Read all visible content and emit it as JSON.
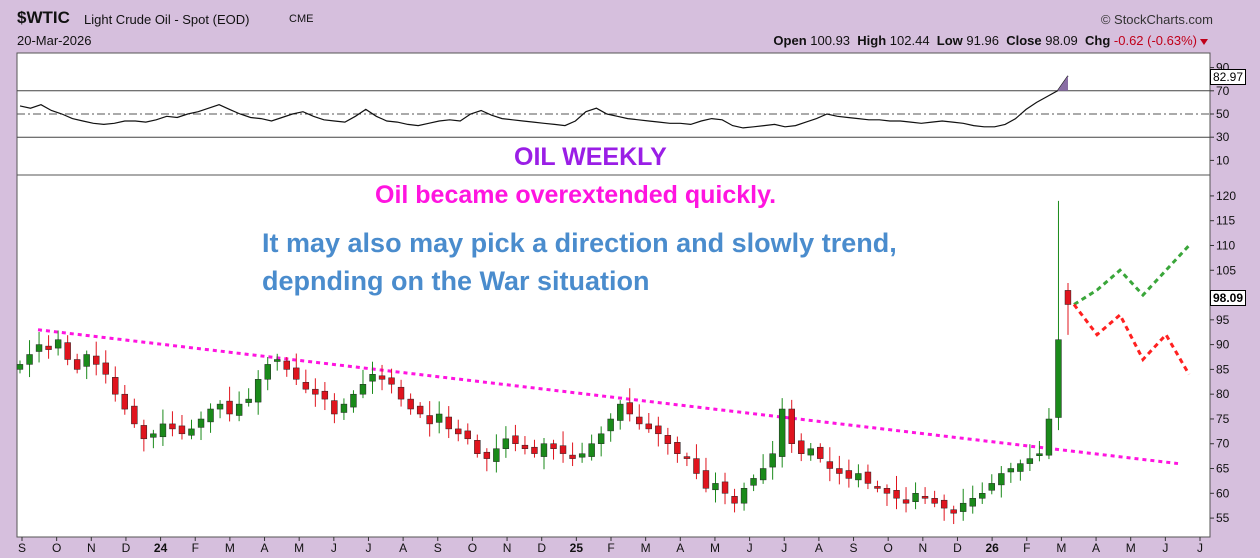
{
  "header": {
    "ticker": "$WTIC",
    "name": "Light Crude Oil - Spot (EOD)",
    "exchange": "CME",
    "date": "20-Mar-2026",
    "copyright": "© StockCharts.com",
    "open_label": "Open",
    "open": "100.93",
    "high_label": "High",
    "high": "102.44",
    "low_label": "Low",
    "low": "91.96",
    "close_label": "Close",
    "close": "98.09",
    "chg_label": "Chg",
    "chg": "-0.62 (-0.63%)"
  },
  "annotations": {
    "title": "OIL WEEKLY",
    "line1": "Oil became overextended quickly.",
    "line2": "It may also may pick a direction and slowly trend,",
    "line3": "depnding on the War situation"
  },
  "labels": {
    "last_price": "98.09",
    "rsi_last": "82.97"
  },
  "colors": {
    "background": "#d6bfdd",
    "up_candle": "#1a8a1a",
    "down_candle": "#e0141e",
    "trendline": "#ff14e0",
    "bull_path": "#3aa63a",
    "bear_path": "#ff2020"
  },
  "chart_data": [
    {
      "type": "line",
      "name": "RSI",
      "ylim": [
        0,
        100
      ],
      "yticks": [
        90,
        70,
        50,
        30,
        10
      ],
      "overbought": 70,
      "oversold": 30,
      "midline": 50,
      "values": [
        57,
        55,
        58,
        53,
        50,
        46,
        44,
        42,
        41,
        42,
        44,
        44,
        43,
        45,
        48,
        47,
        50,
        52,
        55,
        58,
        54,
        50,
        47,
        46,
        44,
        47,
        50,
        52,
        48,
        45,
        44,
        43,
        48,
        54,
        48,
        44,
        43,
        41,
        40,
        42,
        44,
        45,
        44,
        50,
        53,
        49,
        46,
        45,
        44,
        43,
        42,
        41,
        40,
        44,
        52,
        55,
        50,
        48,
        46,
        45,
        44,
        43,
        42,
        42,
        41,
        44,
        46,
        45,
        40,
        38,
        39,
        40,
        41,
        39,
        40,
        43,
        46,
        50,
        48,
        47,
        46,
        45,
        45,
        44,
        44,
        43,
        42,
        43,
        44,
        43,
        42,
        40,
        39,
        39,
        41,
        46,
        54,
        60,
        65,
        70,
        82.97
      ]
    },
    {
      "type": "bar",
      "name": "Candlestick",
      "ylim": [
        53,
        122
      ],
      "yticks": [
        120,
        115,
        110,
        105,
        100,
        95,
        90,
        85,
        80,
        75,
        70,
        65,
        60,
        55
      ],
      "x_tick_labels": [
        "S",
        "O",
        "N",
        "D",
        "24",
        "F",
        "M",
        "A",
        "M",
        "J",
        "J",
        "A",
        "S",
        "O",
        "N",
        "D",
        "25",
        "F",
        "M",
        "A",
        "M",
        "J",
        "J",
        "A",
        "S",
        "O",
        "N",
        "D",
        "26",
        "F",
        "M",
        "A",
        "M",
        "J",
        "J"
      ],
      "closes": [
        86,
        88,
        90,
        89,
        91,
        87,
        85,
        88,
        86,
        84,
        80,
        77,
        74,
        71,
        72,
        74,
        73,
        72,
        73,
        75,
        77,
        78,
        76,
        78,
        79,
        83,
        86,
        87,
        85,
        83,
        81,
        80,
        79,
        76,
        78,
        80,
        82,
        84,
        83,
        82,
        79,
        77,
        76,
        74,
        76,
        73,
        72,
        71,
        68,
        67,
        69,
        71,
        70,
        69,
        68,
        70,
        69,
        68,
        67,
        68,
        70,
        72,
        75,
        78,
        76,
        74,
        73,
        72,
        70,
        68,
        67,
        64,
        61,
        62,
        60,
        58,
        61,
        63,
        65,
        68,
        77,
        70,
        68,
        69,
        67,
        65,
        64,
        63,
        64,
        62,
        61,
        60,
        59,
        58,
        60,
        59,
        58,
        57,
        56,
        58,
        59,
        60,
        62,
        64,
        65,
        66,
        67,
        68,
        75,
        91,
        98.09
      ],
      "forecast_up": [
        [
          98.09,
          101
        ],
        [
          101,
          105
        ],
        [
          105,
          100
        ],
        [
          100,
          105
        ],
        [
          105,
          110
        ]
      ],
      "forecast_down": [
        [
          98.09,
          92
        ],
        [
          92,
          96
        ],
        [
          96,
          87
        ],
        [
          87,
          92
        ],
        [
          92,
          84
        ]
      ],
      "trendline": [
        93,
        66
      ]
    }
  ]
}
